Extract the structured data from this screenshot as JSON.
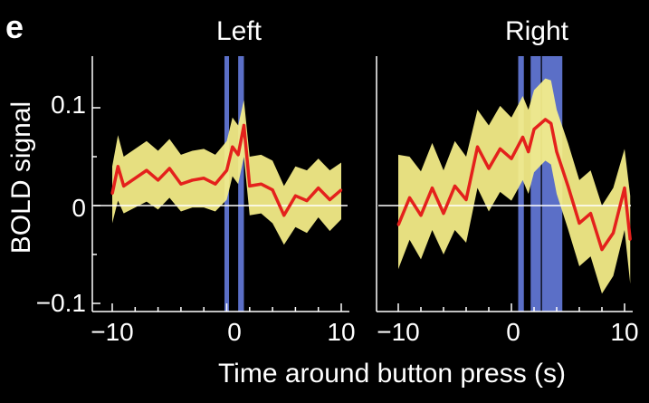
{
  "panel_letter": "e",
  "colors": {
    "background": "#000000",
    "mean_line": "#e4211c",
    "error_band": "#f7f08a",
    "highlight": "#5b6fc7",
    "axis": "#ffffff",
    "zero_line": "#ffffff"
  },
  "chart_data": [
    {
      "type": "line",
      "title": "Left",
      "xlabel": "Time around button press (s)",
      "ylabel": "BOLD signal",
      "xlim": [
        -11,
        11
      ],
      "ylim": [
        -0.105,
        0.15
      ],
      "xticks": [
        -10,
        0,
        10
      ],
      "xtick_labels": [
        "−10",
        "0",
        "10"
      ],
      "yticks": [
        -0.1,
        0,
        0.1
      ],
      "ytick_labels": [
        "−0.1",
        "0",
        "0.1"
      ],
      "grid": false,
      "zero_line": true,
      "highlight_bands": [
        [
          -0.2,
          0.2
        ],
        [
          1.0,
          1.5
        ]
      ],
      "series": [
        {
          "x": [
            -10,
            -9.5,
            -9,
            -8,
            -7,
            -6,
            -5,
            -4,
            -3,
            -2,
            -1,
            0,
            0.5,
            1,
            1.5,
            2,
            3,
            4,
            5,
            6,
            7,
            8,
            9,
            10
          ],
          "y": [
            0.012,
            0.04,
            0.02,
            0.028,
            0.036,
            0.026,
            0.038,
            0.022,
            0.026,
            0.028,
            0.022,
            0.036,
            0.06,
            0.052,
            0.082,
            0.02,
            0.022,
            0.016,
            -0.01,
            0.01,
            0.005,
            0.018,
            0.006,
            0.016
          ],
          "lower": [
            -0.018,
            0.005,
            -0.008,
            -0.002,
            0.004,
            -0.004,
            0.008,
            -0.006,
            -0.002,
            -0.002,
            -0.006,
            0.006,
            0.03,
            0.022,
            0.05,
            -0.01,
            -0.008,
            -0.018,
            -0.04,
            -0.022,
            -0.028,
            -0.012,
            -0.026,
            -0.014
          ],
          "upper": [
            0.04,
            0.072,
            0.05,
            0.058,
            0.066,
            0.056,
            0.068,
            0.052,
            0.056,
            0.058,
            0.052,
            0.066,
            0.09,
            0.082,
            0.108,
            0.05,
            0.052,
            0.046,
            0.02,
            0.04,
            0.036,
            0.048,
            0.036,
            0.044
          ]
        }
      ]
    },
    {
      "type": "line",
      "title": "Right",
      "xlabel": "Time around button press (s)",
      "ylabel": "BOLD signal",
      "xlim": [
        -11,
        11
      ],
      "ylim": [
        -0.105,
        0.15
      ],
      "xticks": [
        -10,
        0,
        10
      ],
      "xtick_labels": [
        "−10",
        "0",
        "10"
      ],
      "yticks": [
        -0.1,
        0,
        0.1
      ],
      "ytick_labels": [
        "−0.1",
        "0",
        "0.1"
      ],
      "grid": false,
      "zero_line": true,
      "highlight_bands": [
        [
          0.6,
          1.1
        ],
        [
          1.7,
          2.6
        ],
        [
          2.7,
          4.5
        ]
      ],
      "series": [
        {
          "x": [
            -10,
            -9,
            -8,
            -7,
            -6,
            -5,
            -4,
            -3,
            -2,
            -1,
            0,
            1,
            1.5,
            2,
            3,
            3.5,
            4,
            5,
            6,
            7,
            8,
            9,
            10,
            10.5
          ],
          "y": [
            -0.02,
            0.008,
            -0.01,
            0.018,
            -0.008,
            0.02,
            0.006,
            0.06,
            0.038,
            0.058,
            0.048,
            0.07,
            0.055,
            0.078,
            0.088,
            0.084,
            0.055,
            0.02,
            -0.018,
            -0.008,
            -0.045,
            -0.028,
            0.018,
            -0.035
          ],
          "lower": [
            -0.065,
            -0.035,
            -0.055,
            -0.025,
            -0.05,
            -0.025,
            -0.038,
            0.018,
            -0.006,
            0.014,
            0.005,
            0.026,
            0.012,
            0.034,
            0.046,
            0.042,
            0.012,
            -0.024,
            -0.062,
            -0.052,
            -0.09,
            -0.072,
            -0.025,
            -0.08
          ],
          "upper": [
            0.052,
            0.05,
            0.035,
            0.064,
            0.036,
            0.066,
            0.05,
            0.098,
            0.082,
            0.102,
            0.09,
            0.112,
            0.098,
            0.118,
            0.13,
            0.128,
            0.098,
            0.064,
            0.026,
            0.036,
            0.0,
            0.018,
            0.058,
            0.01
          ]
        }
      ]
    }
  ]
}
